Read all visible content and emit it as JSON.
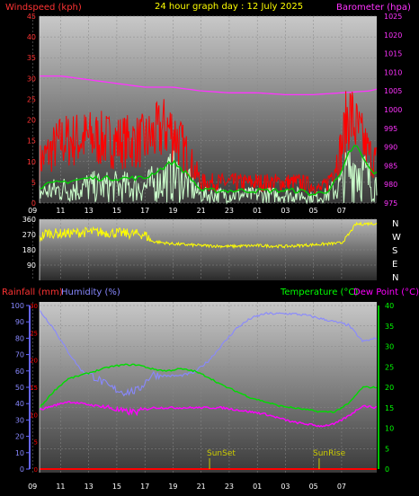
{
  "header": {
    "wind_label": "Windspeed (kph)",
    "title": "24 hour graph day : 12 July 2025",
    "baro_label": "Barometer (hpa)",
    "rain_label": "Rainfall (mm)",
    "humidity_label": "Humidity (%)",
    "temp_label": "Temperature (°C)",
    "dew_label": "Dew Point (°C)"
  },
  "colors": {
    "wind_gust": "#ff0000",
    "wind_avg": "#00cc00",
    "wind_speed": "#ccffcc",
    "barometer": "#ff33ff",
    "direction": "#ffff00",
    "humidity": "#8888ff",
    "temperature": "#00dd00",
    "dew_point": "#ff00ff",
    "rain": "#ff0000",
    "rain_axis": "#6666ff",
    "temp_axis": "#00ff00",
    "sun_marker": "#cccc00",
    "axis_label_red": "#ff3333",
    "wind_axis": "#ff3333",
    "baro_axis": "#ff33ff",
    "dir_axis": "#ffffff"
  },
  "time_axis": {
    "labels": [
      "11",
      "13",
      "15",
      "17",
      "19",
      "21",
      "23",
      "01",
      "03",
      "05",
      "07",
      "09"
    ],
    "sunset_label": "SunSet",
    "sunrise_label": "SunRise",
    "sunset_hour": 21.6,
    "sunrise_hour": 5.4
  },
  "chart_data": [
    {
      "type": "line",
      "name": "wind_barometer",
      "x_range_hours": [
        9.5,
        33.5
      ],
      "wind_axis": {
        "ylim": [
          0,
          45
        ],
        "ticks": [
          0,
          5,
          10,
          15,
          20,
          25,
          30,
          35,
          40,
          45
        ]
      },
      "baro_axis": {
        "ylim": [
          975,
          1025
        ],
        "ticks": [
          975,
          980,
          985,
          990,
          995,
          1000,
          1005,
          1010,
          1015,
          1020,
          1025
        ]
      },
      "series": [
        {
          "name": "Barometer (hpa)",
          "x": [
            9.5,
            11,
            13,
            15,
            17,
            19,
            21,
            23,
            25,
            27,
            29,
            31,
            33,
            33.5
          ],
          "values": [
            1009,
            1009,
            1008,
            1007,
            1006,
            1006,
            1005,
            1004.5,
            1004.5,
            1004,
            1004,
            1004.5,
            1005,
            1005.5
          ]
        },
        {
          "role": "gust",
          "x": [
            9.5,
            11,
            13,
            15,
            17,
            18.5,
            19,
            20,
            21,
            23,
            25,
            27,
            28,
            29,
            29.5,
            30,
            31,
            31.5,
            32,
            33,
            33.5
          ],
          "values": [
            12,
            18,
            19,
            18,
            18,
            22,
            21,
            14,
            6,
            6,
            6,
            6,
            6,
            5,
            4,
            6,
            16,
            27,
            22,
            14,
            12
          ]
        },
        {
          "role": "average",
          "x": [
            9.5,
            11,
            13,
            15,
            17,
            18.5,
            19,
            20,
            21,
            23,
            25,
            27,
            28,
            29,
            30,
            31,
            31.5,
            32,
            33,
            33.5
          ],
          "values": [
            4,
            5,
            6,
            6,
            6,
            9,
            10,
            7,
            3,
            3,
            3,
            3,
            3,
            2,
            3,
            7,
            12,
            14,
            8,
            7
          ]
        }
      ]
    },
    {
      "type": "line",
      "name": "wind_direction",
      "x_range_hours": [
        9.5,
        33.5
      ],
      "ylim": [
        0,
        360
      ],
      "tick_labels": [
        "360",
        "270",
        "180",
        "90"
      ],
      "compass_labels": [
        "N",
        "W",
        "S",
        "E",
        "N"
      ],
      "series": [
        {
          "role": "direction",
          "x": [
            9.5,
            10,
            11,
            13,
            15,
            17,
            17.5,
            19,
            21,
            23,
            25,
            27,
            29,
            30,
            31,
            31.5,
            32,
            33,
            33.5
          ],
          "values": [
            250,
            280,
            275,
            285,
            280,
            270,
            230,
            215,
            205,
            200,
            205,
            200,
            210,
            215,
            220,
            270,
            330,
            335,
            335
          ]
        }
      ]
    },
    {
      "type": "line",
      "name": "temperature_humidity",
      "x_range_hours": [
        9.5,
        33.5
      ],
      "humidity_axis": {
        "ylim": [
          0,
          100
        ],
        "ticks": [
          0,
          10,
          20,
          30,
          40,
          50,
          60,
          70,
          80,
          90,
          100
        ]
      },
      "rain_axis": {
        "ylim": [
          0,
          30
        ],
        "ticks": [
          0,
          5,
          10,
          15,
          20,
          25,
          30
        ]
      },
      "temp_axis": {
        "ylim": [
          0,
          40
        ],
        "ticks": [
          0,
          5,
          10,
          15,
          20,
          25,
          30,
          35,
          40
        ]
      },
      "series": [
        {
          "name": "Humidity (%)",
          "x": [
            9.5,
            10.5,
            11.5,
            12.5,
            13.5,
            14.5,
            15.5,
            16.5,
            17.5,
            18.5,
            19.5,
            20.5,
            21.5,
            22.5,
            23.5,
            24.5,
            25.5,
            26.5,
            27.5,
            28.5,
            29.5,
            30.5,
            31.5,
            32.5,
            33.5
          ],
          "values": [
            97,
            86,
            72,
            60,
            56,
            50,
            47,
            48,
            58,
            57,
            57,
            59,
            66,
            76,
            86,
            92,
            95,
            95,
            95,
            94,
            92,
            90,
            88,
            78,
            80
          ]
        },
        {
          "name": "Temperature (°C)",
          "x": [
            9.5,
            10.5,
            11.5,
            12.5,
            13.5,
            14.5,
            15.5,
            16.5,
            17.5,
            18.5,
            19.5,
            20.5,
            21.5,
            22.5,
            23.5,
            24.5,
            25.5,
            26.5,
            27.5,
            28.5,
            29.5,
            30.5,
            31.5,
            32.5,
            33.5
          ],
          "values": [
            15,
            19,
            22,
            23,
            24,
            25,
            25.5,
            25.5,
            24.5,
            24,
            24.5,
            24,
            22.5,
            20.5,
            19,
            17.5,
            16.5,
            15.5,
            15,
            14.5,
            14,
            14,
            16,
            20,
            20
          ]
        },
        {
          "name": "Dew Point (°C)",
          "x": [
            9.5,
            10.5,
            11.5,
            12.5,
            13.5,
            14.5,
            15.5,
            16.5,
            17.5,
            18.5,
            19.5,
            20.5,
            21.5,
            22.5,
            23.5,
            24.5,
            25.5,
            26.5,
            27.5,
            28.5,
            29.5,
            30.5,
            31.5,
            32.5,
            33.5
          ],
          "values": [
            14.5,
            15.5,
            16.5,
            16,
            15.5,
            15,
            14,
            14,
            15,
            15,
            15,
            15,
            15,
            15,
            14.5,
            14,
            13.5,
            12.5,
            11.5,
            11,
            10.5,
            11,
            13,
            15.5,
            15
          ]
        },
        {
          "name": "Rainfall (mm)",
          "x": [
            9.5,
            33.5
          ],
          "values": [
            0,
            0
          ]
        }
      ]
    }
  ]
}
